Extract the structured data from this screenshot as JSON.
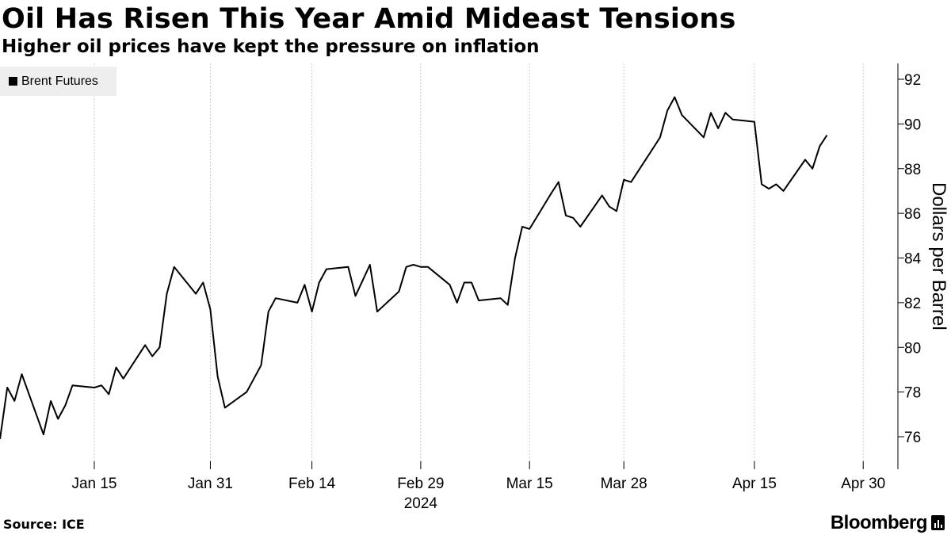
{
  "header": {
    "title": "Oil Has Risen This Year Amid Mideast Tensions",
    "subtitle": "Higher oil prices have kept the pressure on inflation"
  },
  "footer": {
    "source": "Source: ICE",
    "brand": "Bloomberg"
  },
  "colors": {
    "line": "#000000",
    "grid": "#c8c8c8",
    "legend_bg": "#eeeeee"
  },
  "chart_data": {
    "type": "line",
    "title": "Oil Has Risen This Year Amid Mideast Tensions",
    "subtitle": "Higher oil prices have kept the pressure on inflation",
    "xlabel": "",
    "ylabel": "Dollars per Barrel",
    "ylim": [
      75,
      93
    ],
    "yticks": [
      76,
      78,
      80,
      82,
      84,
      86,
      88,
      90,
      92
    ],
    "x_range": [
      "2024-01-02",
      "2024-05-05"
    ],
    "x_ticks": [
      {
        "date": "2024-01-15",
        "label": "Jan 15"
      },
      {
        "date": "2024-01-31",
        "label": "Jan 31"
      },
      {
        "date": "2024-02-14",
        "label": "Feb 14"
      },
      {
        "date": "2024-02-29",
        "label": "Feb 29"
      },
      {
        "date": "2024-03-15",
        "label": "Mar 15"
      },
      {
        "date": "2024-03-28",
        "label": "Mar 28"
      },
      {
        "date": "2024-04-15",
        "label": "Apr 15"
      },
      {
        "date": "2024-04-30",
        "label": "Apr 30"
      }
    ],
    "year_label": {
      "date": "2024-02-29",
      "label": "2024"
    },
    "grid": "vertical-dotted",
    "legend_position": "top-left",
    "series": [
      {
        "name": "Brent Futures",
        "points": [
          [
            "2024-01-02",
            75.9
          ],
          [
            "2024-01-03",
            78.2
          ],
          [
            "2024-01-04",
            77.6
          ],
          [
            "2024-01-05",
            78.8
          ],
          [
            "2024-01-08",
            76.1
          ],
          [
            "2024-01-09",
            77.6
          ],
          [
            "2024-01-10",
            76.8
          ],
          [
            "2024-01-11",
            77.4
          ],
          [
            "2024-01-12",
            78.3
          ],
          [
            "2024-01-15",
            78.2
          ],
          [
            "2024-01-16",
            78.3
          ],
          [
            "2024-01-17",
            77.9
          ],
          [
            "2024-01-18",
            79.1
          ],
          [
            "2024-01-19",
            78.6
          ],
          [
            "2024-01-22",
            80.1
          ],
          [
            "2024-01-23",
            79.6
          ],
          [
            "2024-01-24",
            80.0
          ],
          [
            "2024-01-25",
            82.4
          ],
          [
            "2024-01-26",
            83.6
          ],
          [
            "2024-01-29",
            82.4
          ],
          [
            "2024-01-30",
            82.9
          ],
          [
            "2024-01-31",
            81.7
          ],
          [
            "2024-02-01",
            78.7
          ],
          [
            "2024-02-02",
            77.3
          ],
          [
            "2024-02-05",
            78.0
          ],
          [
            "2024-02-06",
            78.6
          ],
          [
            "2024-02-07",
            79.2
          ],
          [
            "2024-02-08",
            81.6
          ],
          [
            "2024-02-09",
            82.2
          ],
          [
            "2024-02-12",
            82.0
          ],
          [
            "2024-02-13",
            82.8
          ],
          [
            "2024-02-14",
            81.6
          ],
          [
            "2024-02-15",
            82.9
          ],
          [
            "2024-02-16",
            83.5
          ],
          [
            "2024-02-19",
            83.6
          ],
          [
            "2024-02-20",
            82.3
          ],
          [
            "2024-02-21",
            83.0
          ],
          [
            "2024-02-22",
            83.7
          ],
          [
            "2024-02-23",
            81.6
          ],
          [
            "2024-02-26",
            82.5
          ],
          [
            "2024-02-27",
            83.6
          ],
          [
            "2024-02-28",
            83.7
          ],
          [
            "2024-02-29",
            83.6
          ],
          [
            "2024-03-01",
            83.6
          ],
          [
            "2024-03-04",
            82.8
          ],
          [
            "2024-03-05",
            82.0
          ],
          [
            "2024-03-06",
            82.9
          ],
          [
            "2024-03-07",
            82.9
          ],
          [
            "2024-03-08",
            82.1
          ],
          [
            "2024-03-11",
            82.2
          ],
          [
            "2024-03-12",
            81.9
          ],
          [
            "2024-03-13",
            84.0
          ],
          [
            "2024-03-14",
            85.4
          ],
          [
            "2024-03-15",
            85.3
          ],
          [
            "2024-03-18",
            86.9
          ],
          [
            "2024-03-19",
            87.4
          ],
          [
            "2024-03-20",
            85.9
          ],
          [
            "2024-03-21",
            85.8
          ],
          [
            "2024-03-22",
            85.4
          ],
          [
            "2024-03-25",
            86.8
          ],
          [
            "2024-03-26",
            86.3
          ],
          [
            "2024-03-27",
            86.1
          ],
          [
            "2024-03-28",
            87.5
          ],
          [
            "2024-03-29",
            87.4
          ],
          [
            "2024-04-01",
            88.9
          ],
          [
            "2024-04-02",
            89.4
          ],
          [
            "2024-04-03",
            90.6
          ],
          [
            "2024-04-04",
            91.2
          ],
          [
            "2024-04-05",
            90.4
          ],
          [
            "2024-04-08",
            89.4
          ],
          [
            "2024-04-09",
            90.5
          ],
          [
            "2024-04-10",
            89.8
          ],
          [
            "2024-04-11",
            90.5
          ],
          [
            "2024-04-12",
            90.2
          ],
          [
            "2024-04-15",
            90.1
          ],
          [
            "2024-04-16",
            87.3
          ],
          [
            "2024-04-17",
            87.1
          ],
          [
            "2024-04-18",
            87.3
          ],
          [
            "2024-04-19",
            87.0
          ],
          [
            "2024-04-22",
            88.4
          ],
          [
            "2024-04-23",
            88.0
          ],
          [
            "2024-04-24",
            89.0
          ],
          [
            "2024-04-25",
            89.5
          ]
        ]
      }
    ]
  }
}
